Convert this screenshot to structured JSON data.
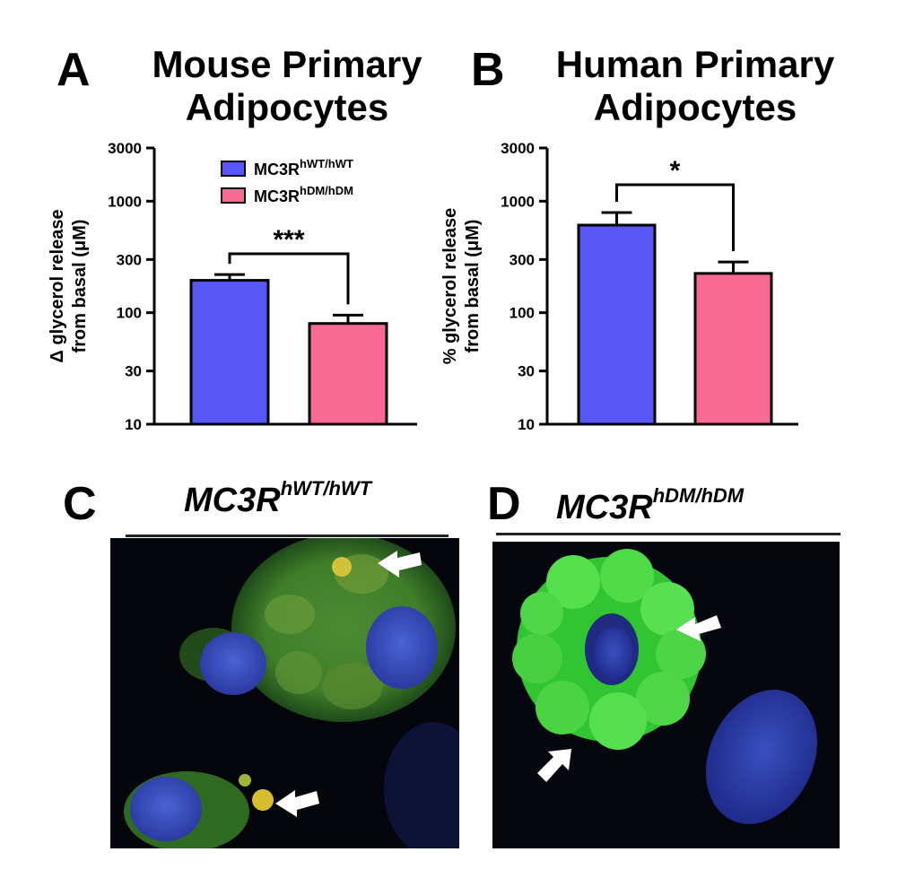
{
  "panels": {
    "a": {
      "letter": "A",
      "title_line1": "Mouse Primary",
      "title_line2": "Adipocytes"
    },
    "b": {
      "letter": "B",
      "title_line1": "Human Primary",
      "title_line2": "Adipocytes"
    },
    "c": {
      "letter": "C",
      "label_main": "MC3R",
      "label_sup": "hWT/hWT"
    },
    "d": {
      "letter": "D",
      "label_main": "MC3R",
      "label_sup": "hDM/hDM"
    }
  },
  "colors": {
    "wt": "#5757f5",
    "dm": "#f86a94",
    "axis": "#000000"
  },
  "chart_data": [
    {
      "type": "bar",
      "title": "Mouse Primary Adipocytes",
      "ylabel_line1": "Δ glycerol release",
      "ylabel_line2": "from basal (μM)",
      "yscale": "log",
      "ylim": [
        10,
        3000
      ],
      "yticks": [
        "10",
        "30",
        "100",
        "300",
        "1000",
        "3000"
      ],
      "categories": [
        "MC3R hWT/hWT",
        "MC3R hDM/hDM"
      ],
      "values": [
        195,
        80
      ],
      "errors": [
        220,
        95
      ],
      "significance": "***",
      "legend": {
        "placement": "top-center",
        "entries": [
          {
            "main": "MC3R",
            "sup": "hWT/hWT"
          },
          {
            "main": "MC3R",
            "sup": "hDM/hDM"
          }
        ]
      }
    },
    {
      "type": "bar",
      "title": "Human Primary Adipocytes",
      "ylabel_line1": "% glycerol release",
      "ylabel_line2": "from basal (μM)",
      "yscale": "log",
      "ylim": [
        10,
        3000
      ],
      "yticks": [
        "10",
        "30",
        "100",
        "300",
        "1000",
        "3000"
      ],
      "categories": [
        "MC3R hWT/hWT",
        "MC3R hDM/hDM"
      ],
      "values": [
        610,
        225
      ],
      "errors": [
        790,
        285
      ],
      "significance": "*"
    }
  ]
}
